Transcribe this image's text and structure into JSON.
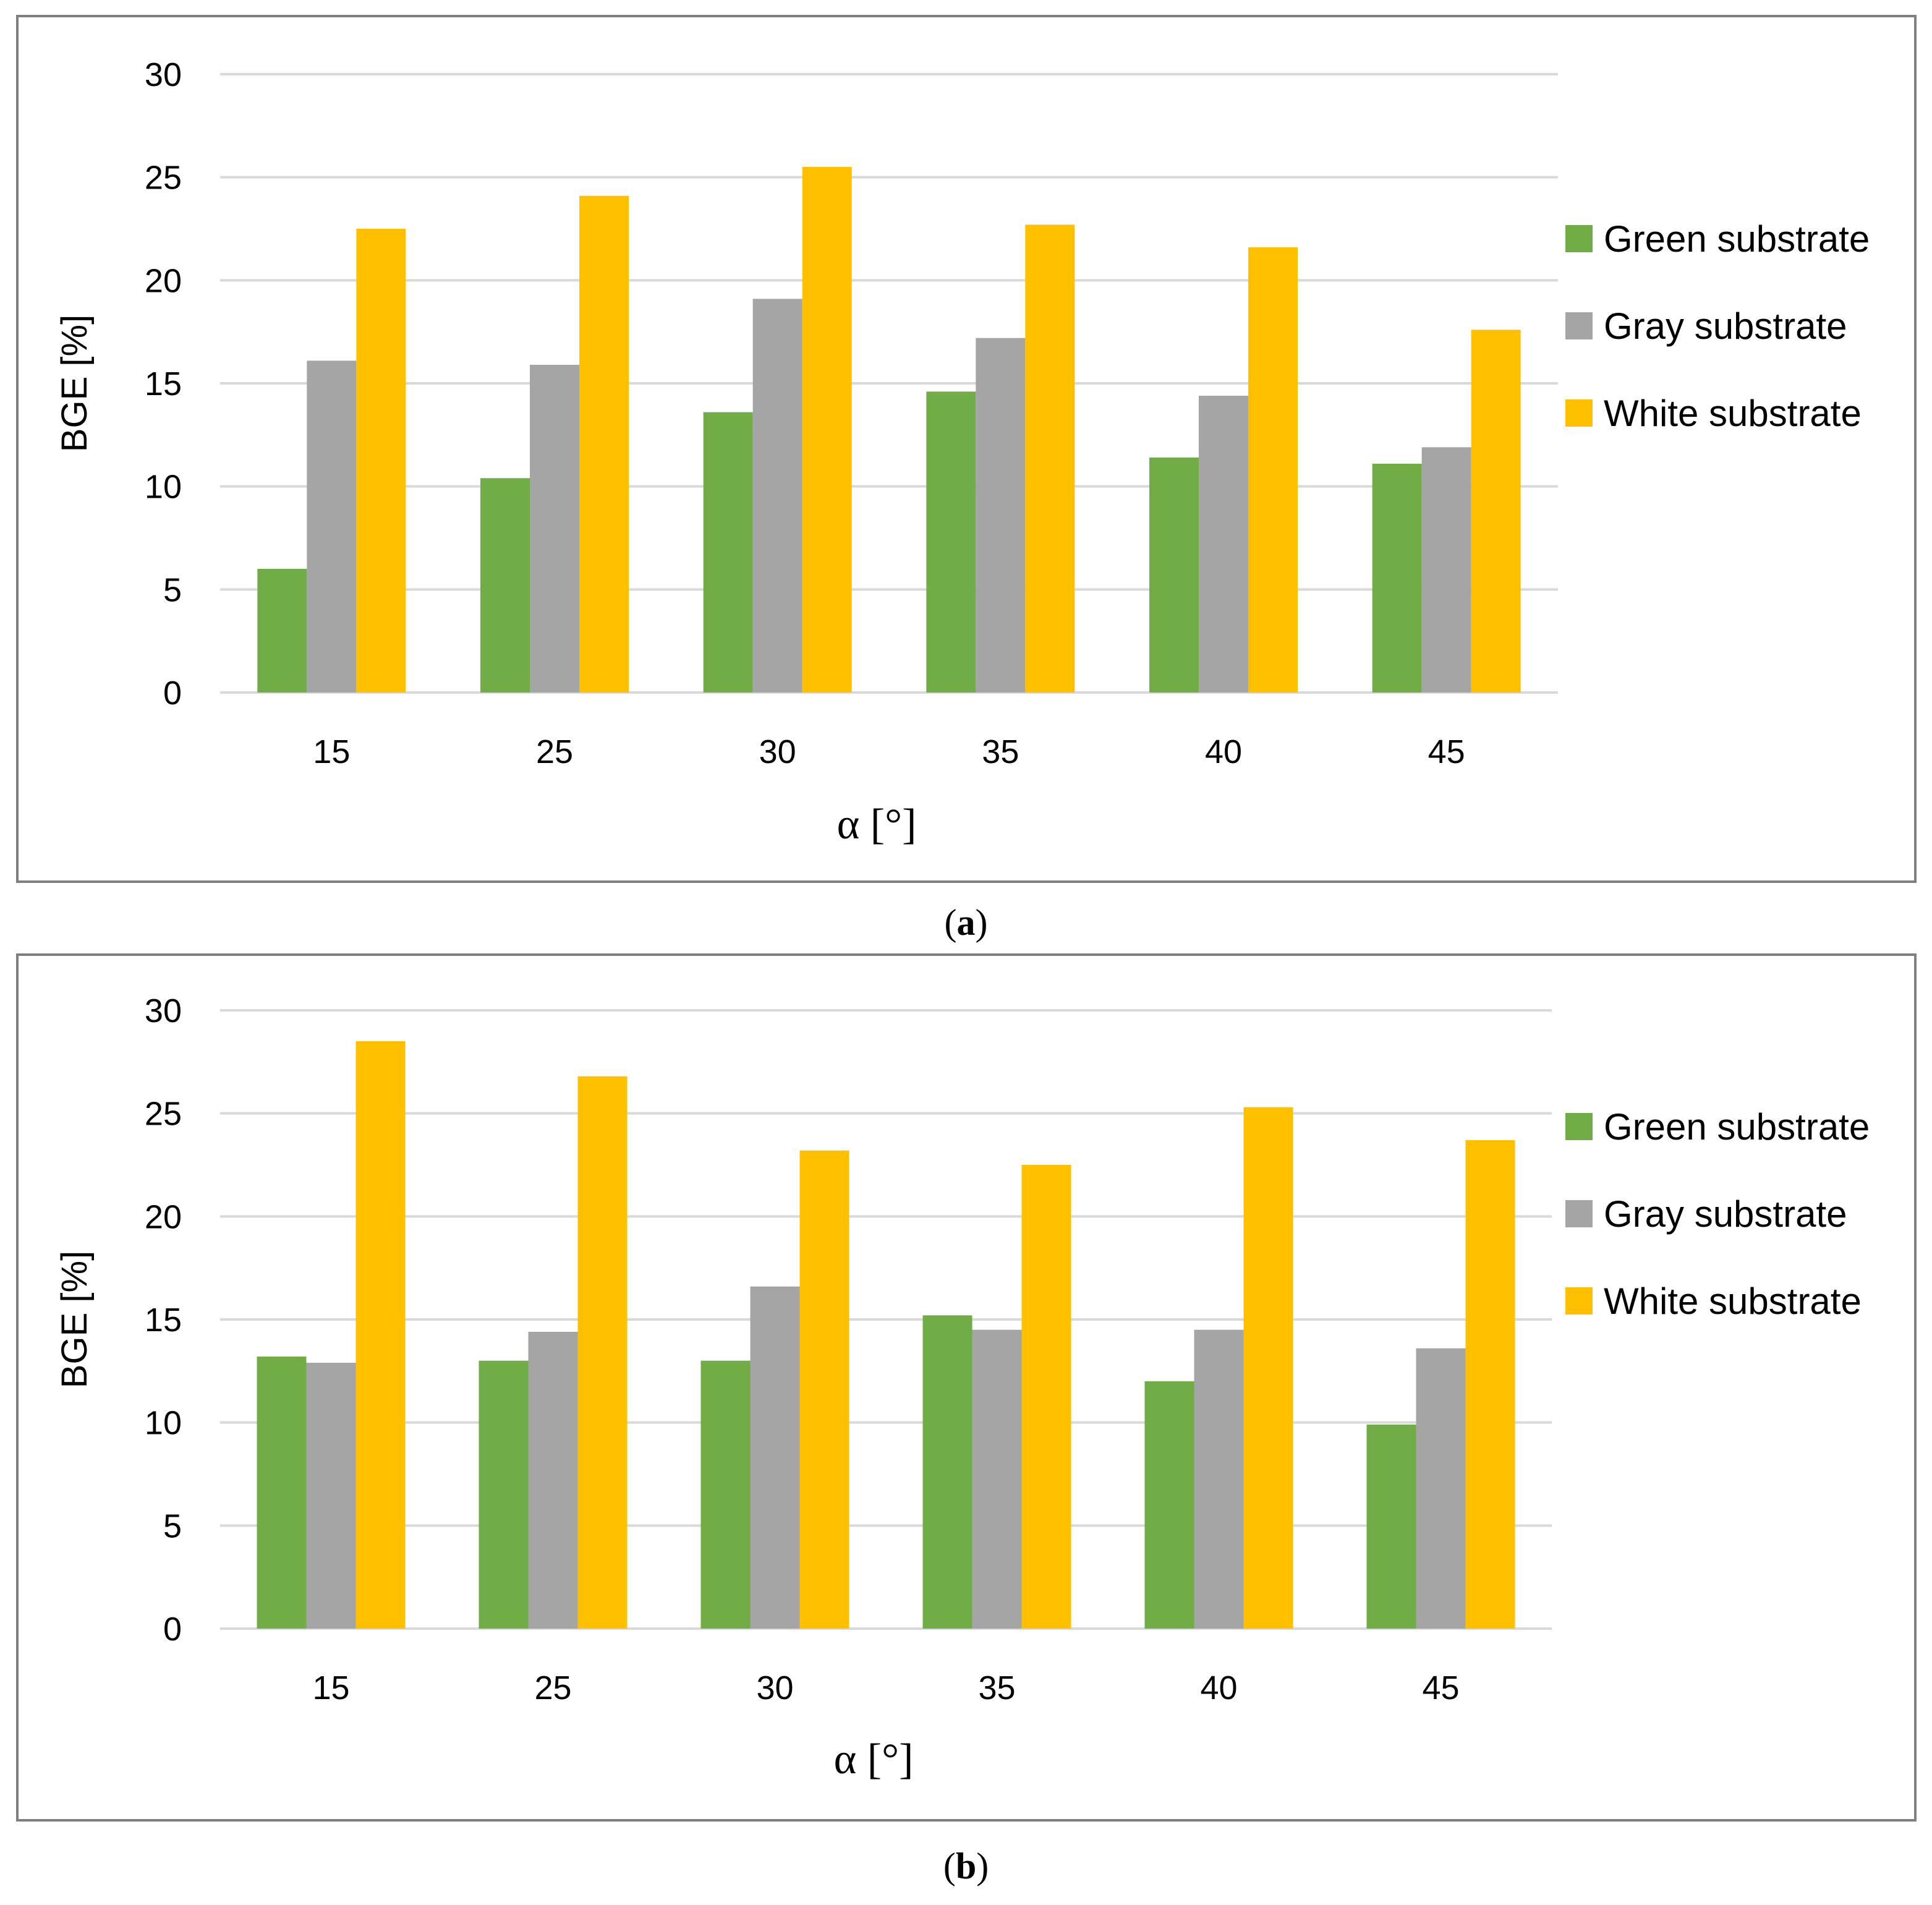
{
  "chart_data": [
    {
      "type": "bar",
      "panel": "a",
      "caption_letter": "a",
      "categories": [
        "15",
        "25",
        "30",
        "35",
        "40",
        "45"
      ],
      "series": [
        {
          "name": "Green substrate",
          "color": "#70AD47",
          "values": [
            6.0,
            10.4,
            13.6,
            14.6,
            11.4,
            11.1
          ]
        },
        {
          "name": "Gray substrate",
          "color": "#A5A5A5",
          "values": [
            16.1,
            15.9,
            19.1,
            17.2,
            14.4,
            11.9
          ]
        },
        {
          "name": "White substrate",
          "color": "#FFC000",
          "values": [
            22.5,
            24.1,
            25.5,
            22.7,
            21.6,
            17.6
          ]
        }
      ],
      "xlabel": "α [°]",
      "ylabel": "BGE [%]",
      "ylim": [
        0,
        30
      ],
      "yticks": [
        "0",
        "5",
        "10",
        "15",
        "20",
        "25",
        "30"
      ],
      "legend_position": "right",
      "grid": true
    },
    {
      "type": "bar",
      "panel": "b",
      "caption_letter": "b",
      "categories": [
        "15",
        "25",
        "30",
        "35",
        "40",
        "45"
      ],
      "series": [
        {
          "name": "Green substrate",
          "color": "#70AD47",
          "values": [
            13.2,
            13.0,
            13.0,
            15.2,
            12.0,
            9.9
          ]
        },
        {
          "name": "Gray substrate",
          "color": "#A5A5A5",
          "values": [
            12.9,
            14.4,
            16.6,
            14.5,
            14.5,
            13.6
          ]
        },
        {
          "name": "White substrate",
          "color": "#FFC000",
          "values": [
            28.5,
            26.8,
            23.2,
            22.5,
            25.3,
            23.7
          ]
        }
      ],
      "xlabel": "α [°]",
      "ylabel": "BGE [%]",
      "ylim": [
        0,
        30
      ],
      "yticks": [
        "0",
        "5",
        "10",
        "15",
        "20",
        "25",
        "30"
      ],
      "legend_position": "right",
      "grid": true
    }
  ]
}
